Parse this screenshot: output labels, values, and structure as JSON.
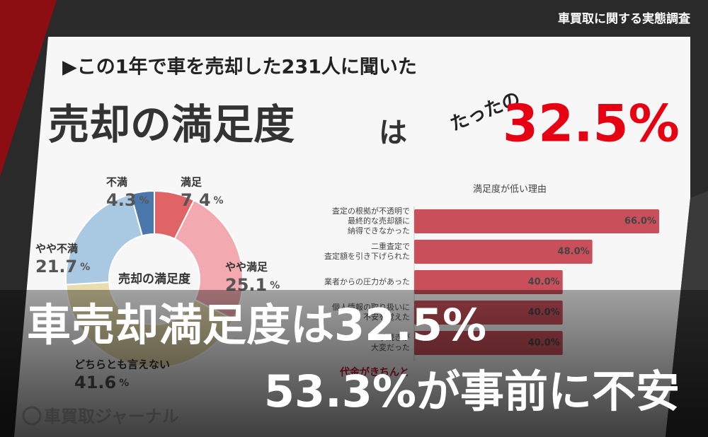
{
  "header": {
    "label": "車買取に関する実態調査"
  },
  "panel": {
    "lead": "▶この1年で車を売却した231人に聞いた",
    "title": "売却の満足度",
    "particle": "は",
    "prefix": "たったの",
    "highlight": "32.5%"
  },
  "chart_data": [
    {
      "type": "pie",
      "center_label": "売却の満足度",
      "unit": "%",
      "categories": [
        "満足",
        "やや満足",
        "どちらとも言えない",
        "やや不満",
        "不満"
      ],
      "values": [
        7.4,
        25.1,
        41.6,
        21.7,
        4.3
      ],
      "colors": [
        "#e06466",
        "#f2a9b0",
        "#e9dcae",
        "#a9c9e2",
        "#4a78ad"
      ]
    },
    {
      "type": "hbar",
      "title": "満足度が低い理由",
      "color": "#c9505a",
      "categories": [
        "査定の根拠が不透明で\n最終的な売却額に\n納得できなかった",
        "二重査定で\n査定額を引き下げられた",
        "業者からの圧力があった",
        "個人情報の取り扱いに\n不安を覚えた",
        "手続きが\n大変だった"
      ],
      "values": [
        66.0,
        48.0,
        40.0,
        40.0,
        40.0
      ],
      "value_labels": [
        "66.0%",
        "48.0%",
        "40.0%",
        "40.0%",
        "40.0%"
      ],
      "xlim": [
        0,
        70
      ],
      "annotation": "代金がきちんと"
    }
  ],
  "overlay": {
    "line1": "車売却満足度は32.5%",
    "line2": "53.3%が事前に不安"
  },
  "logo": "車買取ジャーナル"
}
